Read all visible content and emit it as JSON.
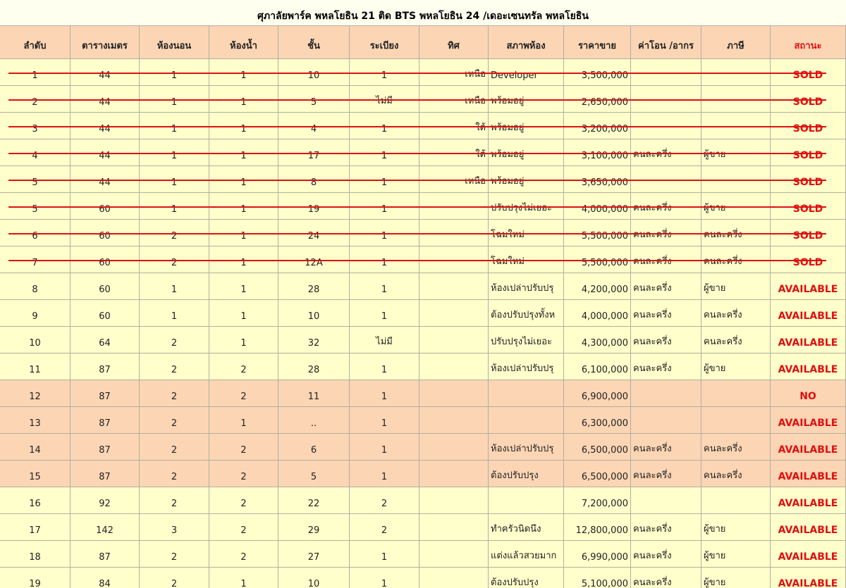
{
  "title": "ศุภาลัยพาร์ค พหลโยธิน 21 ติด BTS พหลโยธิน 24 /เดอะเซนทรัล พหลโยธิน",
  "table": {
    "headers": [
      "ลำดับ",
      "ตารางเมตร",
      "ห้องนอน",
      "ห้องน้ำ",
      "ชั้น",
      "ระเบียง",
      "ทิศ",
      "สภาพห้อง",
      "ราคาขาย",
      "ค่าโอน /อากร",
      "ภาษี",
      "สถานะ"
    ],
    "rows": [
      {
        "cells": [
          "1",
          "44",
          "1",
          "1",
          "10",
          "1",
          "เหนือ",
          "Developer",
          "3,500,000",
          null,
          null,
          "SOLD"
        ],
        "struck": true,
        "highlight": false
      },
      {
        "cells": [
          "2",
          "44",
          "1",
          "1",
          "5",
          "ไม่มี",
          "เหนือ",
          "พร้อมอยู่",
          "2,650,000",
          null,
          null,
          "SOLD"
        ],
        "struck": true,
        "highlight": false
      },
      {
        "cells": [
          "3",
          "44",
          "1",
          "1",
          "4",
          "1",
          "ใต้",
          "พร้อมอยู่",
          "3,200,000",
          null,
          null,
          "SOLD"
        ],
        "struck": true,
        "highlight": false
      },
      {
        "cells": [
          "4",
          "44",
          "1",
          "1",
          "17",
          "1",
          "ใต้",
          "พร้อมอยู่",
          "3,100,000",
          "คนละครึ่ง",
          "ผู้ขาย",
          "SOLD"
        ],
        "struck": true,
        "highlight": false
      },
      {
        "cells": [
          "5",
          "44",
          "1",
          "1",
          "8",
          "1",
          "เหนือ",
          "พร้อมอยู่",
          "3,650,000",
          null,
          null,
          "SOLD"
        ],
        "struck": true,
        "highlight": false
      },
      {
        "cells": [
          "5",
          "60",
          "1",
          "1",
          "19",
          "1",
          null,
          "ปรับปรุงไม่เยอะ",
          "4,000,000",
          "คนละครึ่ง",
          "ผู้ขาย",
          "SOLD"
        ],
        "struck": true,
        "highlight": false
      },
      {
        "cells": [
          "6",
          "60",
          "2",
          "1",
          "24",
          "1",
          null,
          "โฉมใหม่",
          "5,500,000",
          "คนละครึ่ง",
          "คนละครึ่ง",
          "SOLD"
        ],
        "struck": true,
        "highlight": false
      },
      {
        "cells": [
          "7",
          "60",
          "2",
          "1",
          "12A",
          "1",
          null,
          "โฉมใหม่",
          "5,500,000",
          "คนละครึ่ง",
          "คนละครึ่ง",
          "SOLD"
        ],
        "struck": true,
        "highlight": false
      },
      {
        "cells": [
          "8",
          "60",
          "1",
          "1",
          "28",
          "1",
          null,
          "ห้องเปล่าปรับปรุ",
          "4,200,000",
          "คนละครึ่ง",
          "ผู้ขาย",
          "AVAILABLE"
        ],
        "struck": false,
        "highlight": false
      },
      {
        "cells": [
          "9",
          "60",
          "1",
          "1",
          "10",
          "1",
          null,
          "ต้องปรับปรุงทั้งห",
          "4,000,000",
          "คนละครึ่ง",
          "คนละครึ่ง",
          "AVAILABLE"
        ],
        "struck": false,
        "highlight": false
      },
      {
        "cells": [
          "10",
          "64",
          "2",
          "1",
          "32",
          "ไม่มี",
          null,
          "ปรับปรุงไม่เยอะ",
          "4,300,000",
          "คนละครึ่ง",
          "คนละครึ่ง",
          "AVAILABLE"
        ],
        "struck": false,
        "highlight": false
      },
      {
        "cells": [
          "11",
          "87",
          "2",
          "2",
          "28",
          "1",
          null,
          "ห้องเปล่าปรับปรุ",
          "6,100,000",
          "คนละครึ่ง",
          "ผู้ขาย",
          "AVAILABLE"
        ],
        "struck": false,
        "highlight": false
      },
      {
        "cells": [
          "12",
          "87",
          "2",
          "2",
          "11",
          "1",
          null,
          null,
          "6,900,000",
          null,
          null,
          "NO"
        ],
        "struck": false,
        "highlight": true
      },
      {
        "cells": [
          "13",
          "87",
          "2",
          "1",
          "..",
          "1",
          null,
          null,
          "6,300,000",
          null,
          null,
          "AVAILABLE"
        ],
        "struck": false,
        "highlight": true
      },
      {
        "cells": [
          "14",
          "87",
          "2",
          "2",
          "6",
          "1",
          null,
          "ห้องเปล่าปรับปรุ",
          "6,500,000",
          "คนละครึ่ง",
          "คนละครึ่ง",
          "AVAILABLE"
        ],
        "struck": false,
        "highlight": true
      },
      {
        "cells": [
          "15",
          "87",
          "2",
          "2",
          "5",
          "1",
          null,
          "ต้องปรับปรุง",
          "6,500,000",
          "คนละครึ่ง",
          "คนละครึ่ง",
          "AVAILABLE"
        ],
        "struck": false,
        "highlight": true
      },
      {
        "cells": [
          "16",
          "92",
          "2",
          "2",
          "22",
          "2",
          null,
          null,
          "7,200,000",
          null,
          null,
          "AVAILABLE"
        ],
        "struck": false,
        "highlight": false
      },
      {
        "cells": [
          "17",
          "142",
          "3",
          "2",
          "29",
          "2",
          null,
          "ทำครัวนิดนึง",
          "12,800,000",
          "คนละครึ่ง",
          "ผู้ขาย",
          "AVAILABLE"
        ],
        "struck": false,
        "highlight": false
      },
      {
        "cells": [
          "18",
          "87",
          "2",
          "2",
          "27",
          "1",
          null,
          "แต่งแล้วสวยมาก",
          "6,990,000",
          "คนละครึ่ง",
          "ผู้ขาย",
          "AVAILABLE"
        ],
        "struck": false,
        "highlight": false
      },
      {
        "cells": [
          "19",
          "84",
          "2",
          "1",
          "10",
          "1",
          null,
          "ต้องปรับปรุง",
          "5,100,000",
          "คนละครึ่ง",
          "ผู้ขาย",
          "AVAILABLE"
        ],
        "struck": false,
        "highlight": false
      }
    ]
  }
}
